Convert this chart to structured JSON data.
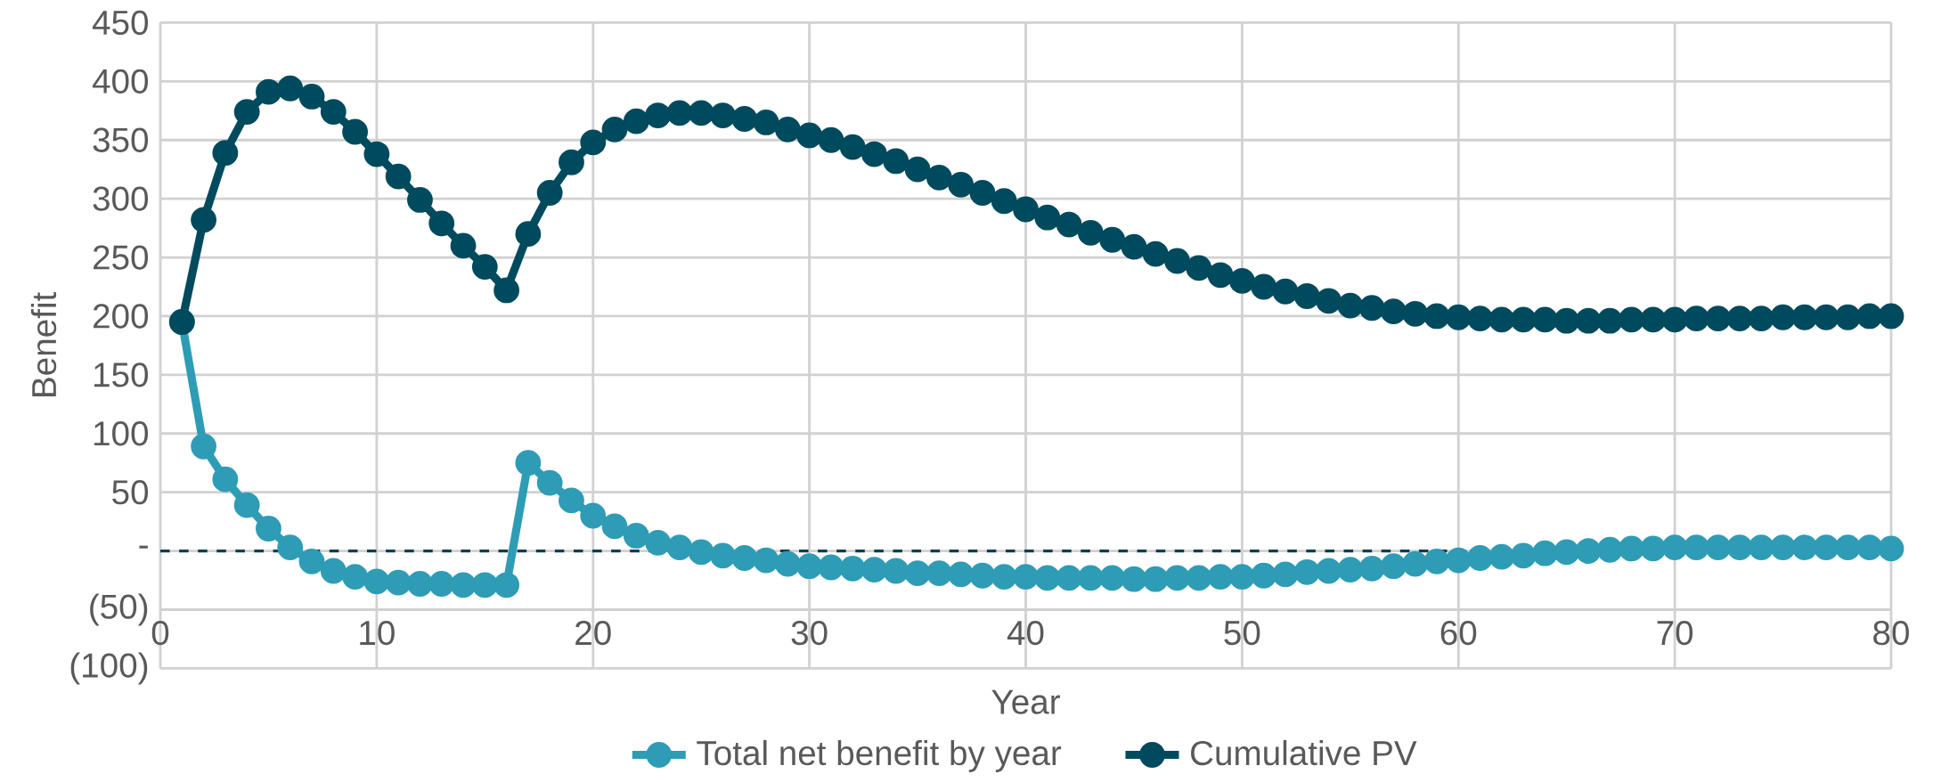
{
  "chart_data": {
    "type": "line",
    "xlabel": "Year",
    "ylabel": "Benefit",
    "x": [
      1,
      2,
      3,
      4,
      5,
      6,
      7,
      8,
      9,
      10,
      11,
      12,
      13,
      14,
      15,
      16,
      17,
      18,
      19,
      20,
      21,
      22,
      23,
      24,
      25,
      26,
      27,
      28,
      29,
      30,
      31,
      32,
      33,
      34,
      35,
      36,
      37,
      38,
      39,
      40,
      41,
      42,
      43,
      44,
      45,
      46,
      47,
      48,
      49,
      50,
      51,
      52,
      53,
      54,
      55,
      56,
      57,
      58,
      59,
      60,
      61,
      62,
      63,
      64,
      65,
      66,
      67,
      68,
      69,
      70,
      71,
      72,
      73,
      74,
      75,
      76,
      77,
      78,
      79,
      80
    ],
    "series": [
      {
        "name": "Total net benefit by year",
        "color": "#2e9cb5",
        "values": [
          195,
          89,
          61,
          39,
          19,
          3,
          -9,
          -17,
          -22,
          -26,
          -27,
          -28,
          -28,
          -29,
          -29,
          -29,
          75,
          58,
          43,
          30,
          21,
          13,
          7,
          3,
          -1,
          -4,
          -6,
          -8,
          -11,
          -13,
          -14,
          -15,
          -16,
          -17,
          -19,
          -19,
          -20,
          -21,
          -22,
          -22,
          -23,
          -23,
          -23,
          -23,
          -24,
          -24,
          -23,
          -23,
          -22,
          -22,
          -21,
          -20,
          -18,
          -17,
          -16,
          -15,
          -13,
          -11,
          -9,
          -8,
          -6,
          -5,
          -4,
          -2,
          -1,
          0,
          1,
          2,
          2,
          3,
          3,
          3,
          3,
          3,
          3,
          3,
          3,
          3,
          3,
          2
        ]
      },
      {
        "name": "Cumulative PV",
        "color": "#004a5e",
        "values": [
          195,
          282,
          339,
          374,
          391,
          394,
          387,
          374,
          357,
          338,
          319,
          299,
          279,
          260,
          242,
          222,
          270,
          305,
          331,
          348,
          359,
          366,
          371,
          373,
          373,
          371,
          368,
          365,
          359,
          354,
          350,
          344,
          338,
          332,
          325,
          318,
          312,
          305,
          298,
          291,
          284,
          278,
          271,
          265,
          259,
          253,
          247,
          241,
          235,
          230,
          225,
          221,
          217,
          213,
          209,
          207,
          204,
          202,
          200,
          199,
          198,
          197,
          197,
          197,
          196,
          196,
          196,
          197,
          197,
          197,
          198,
          198,
          198,
          198,
          199,
          199,
          199,
          199,
          200,
          200
        ]
      }
    ],
    "xlim": [
      0,
      80
    ],
    "xticks": [
      0,
      10,
      20,
      30,
      40,
      50,
      60,
      70,
      80
    ],
    "ylim": [
      -100,
      450
    ],
    "yticks": [
      {
        "value": -100,
        "label": "(100)"
      },
      {
        "value": -50,
        "label": "(50)"
      },
      {
        "value": 0,
        "label": "-"
      },
      50,
      100,
      150,
      200,
      250,
      300,
      350,
      400,
      450
    ],
    "ref_lines": [
      {
        "axis": "y",
        "value": 0,
        "color": "#0b3d4f",
        "line_style": "dashed"
      }
    ],
    "grid": true,
    "legend": "bottom",
    "marker": "circle",
    "line_style": "solid"
  }
}
